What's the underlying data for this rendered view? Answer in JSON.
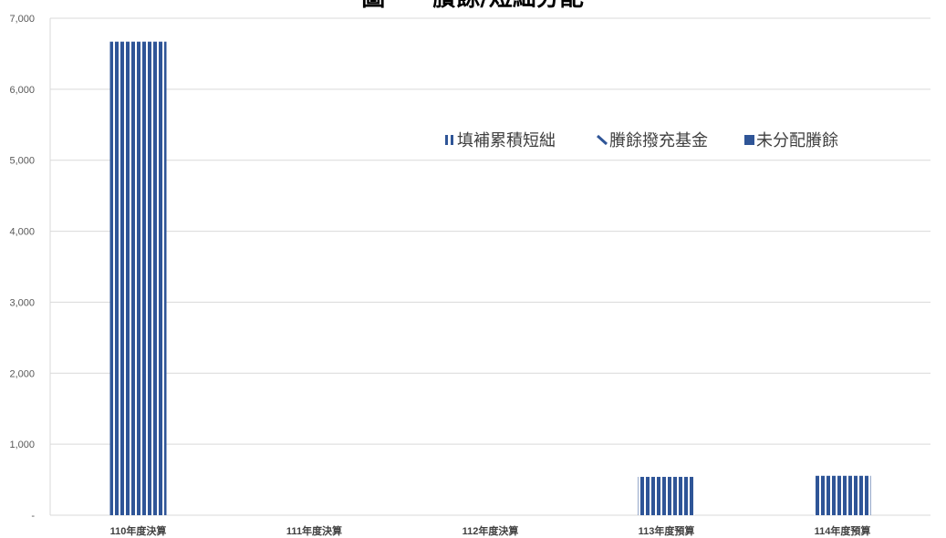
{
  "chart_data": {
    "type": "bar",
    "title": "圖　　賸餘/短絀分配",
    "categories": [
      "110年度決算",
      "111年度決算",
      "112年度決算",
      "113年度預算",
      "114年度預算"
    ],
    "series": [
      {
        "name": "填補累積短絀",
        "values": [
          6670,
          0,
          0,
          540,
          555
        ],
        "color": "#2F5597",
        "pattern": "vertical-stripes"
      },
      {
        "name": "賸餘撥充基金",
        "values": [
          0,
          0,
          0,
          0,
          0
        ],
        "color": "#2F5597",
        "pattern": "diagonal-stripes"
      },
      {
        "name": "未分配賸餘",
        "values": [
          0,
          0,
          0,
          0,
          0
        ],
        "color": "#2F5597",
        "pattern": "solid"
      }
    ],
    "ylim": [
      0,
      7000
    ],
    "yticks": [
      "-",
      "1,000",
      "2,000",
      "3,000",
      "4,000",
      "5,000",
      "6,000",
      "7,000"
    ],
    "ytick_values": [
      0,
      1000,
      2000,
      3000,
      4000,
      5000,
      6000,
      7000
    ],
    "xlabel": "",
    "ylabel": "",
    "grid": true,
    "legend_position": "top-right",
    "gridline_color": "#D9D9D9"
  }
}
